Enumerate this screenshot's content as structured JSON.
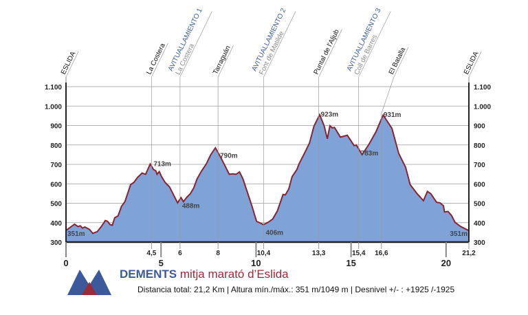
{
  "colors": {
    "fill": "#7fa3d6",
    "line": "#8b2232",
    "accent_blue": "#3c5a9b",
    "accent_red": "#9b2a3a",
    "grid": "#9a9a9a"
  },
  "header": {
    "brand": "DEMENTS",
    "race_name": "mitja marató d’Eslida",
    "stats": "Distancia total: 21,2 Km | Altura mín./máx.: 351 m/1049 m  |  Desnivel +/- : +1925 /-1925"
  },
  "chart_data": {
    "type": "area",
    "xlim": [
      0,
      21.2
    ],
    "ylim": [
      300,
      1100
    ],
    "y_ticks": [
      {
        "v": 300,
        "label": "300"
      },
      {
        "v": 400,
        "label": "400"
      },
      {
        "v": 500,
        "label": "500"
      },
      {
        "v": 600,
        "label": "600"
      },
      {
        "v": 700,
        "label": "700"
      },
      {
        "v": 800,
        "label": "800"
      },
      {
        "v": 900,
        "label": "900"
      },
      {
        "v": 1000,
        "label": "1.000"
      },
      {
        "v": 1100,
        "label": "1.100"
      }
    ],
    "x_major_ticks": [
      {
        "v": 0,
        "label": "0"
      },
      {
        "v": 5,
        "label": "5"
      },
      {
        "v": 10,
        "label": "10"
      },
      {
        "v": 15,
        "label": "15"
      },
      {
        "v": 20,
        "label": "20"
      }
    ],
    "x_minor_ticks": [
      {
        "v": 4.5,
        "label": "4,5"
      },
      {
        "v": 6,
        "label": "6"
      },
      {
        "v": 8,
        "label": "8"
      },
      {
        "v": 10.4,
        "label": "10,4"
      },
      {
        "v": 13.3,
        "label": "13,3"
      },
      {
        "v": 15.4,
        "label": "15,4"
      },
      {
        "v": 16.6,
        "label": "16,6"
      },
      {
        "v": 21.2,
        "label": "21,2"
      }
    ],
    "grid": true,
    "waypoints": [
      {
        "km": 0,
        "label": "ESLIDA",
        "sub": ""
      },
      {
        "km": 4.5,
        "label": "La Costera",
        "sub": ""
      },
      {
        "km": 6,
        "label": "AVITUALLAMIENTO 1",
        "sub": "La Costera",
        "aid": true
      },
      {
        "km": 8,
        "label": "Tarraguán",
        "sub": ""
      },
      {
        "km": 10.4,
        "label": "AVITUALLAMIENTO 2",
        "sub": "Font de Matilde",
        "aid": true
      },
      {
        "km": 13.3,
        "label": "Puntal de l'Aljub",
        "sub": ""
      },
      {
        "km": 15.4,
        "label": "AVITUALLAMIENTO 3",
        "sub": "Coll de Barres",
        "aid": true
      },
      {
        "km": 16.6,
        "label": "El Batalla",
        "sub": ""
      },
      {
        "km": 21.2,
        "label": "ESLIDA",
        "sub": ""
      }
    ],
    "annotations": [
      {
        "km": 0,
        "label": "351m"
      },
      {
        "km": 4.5,
        "label": "713m"
      },
      {
        "km": 6,
        "label": "488m"
      },
      {
        "km": 8,
        "label": "790m"
      },
      {
        "km": 10.4,
        "label": "406m"
      },
      {
        "km": 13.3,
        "label": "923m"
      },
      {
        "km": 15.4,
        "label": "783m"
      },
      {
        "km": 16.6,
        "label": "931m"
      },
      {
        "km": 21.2,
        "label": "351m"
      }
    ],
    "profile": [
      [
        0,
        360
      ],
      [
        0.45,
        392
      ],
      [
        0.63,
        380
      ],
      [
        0.75,
        384
      ],
      [
        0.87,
        372
      ],
      [
        0.99,
        378
      ],
      [
        1.23,
        366
      ],
      [
        1.41,
        345
      ],
      [
        1.65,
        354
      ],
      [
        1.89,
        384
      ],
      [
        2.07,
        411
      ],
      [
        2.19,
        407
      ],
      [
        2.32,
        390
      ],
      [
        2.44,
        387
      ],
      [
        2.56,
        425
      ],
      [
        2.74,
        435
      ],
      [
        2.92,
        484
      ],
      [
        3.1,
        508
      ],
      [
        3.4,
        596
      ],
      [
        3.58,
        608
      ],
      [
        3.76,
        632
      ],
      [
        4.0,
        655
      ],
      [
        4.19,
        649
      ],
      [
        4.43,
        702
      ],
      [
        4.61,
        673
      ],
      [
        4.73,
        667
      ],
      [
        4.79,
        649
      ],
      [
        4.91,
        663
      ],
      [
        5.03,
        637
      ],
      [
        5.21,
        608
      ],
      [
        5.45,
        584
      ],
      [
        5.63,
        549
      ],
      [
        5.87,
        502
      ],
      [
        6.05,
        529
      ],
      [
        6.18,
        508
      ],
      [
        6.36,
        531
      ],
      [
        6.54,
        549
      ],
      [
        6.72,
        579
      ],
      [
        6.9,
        626
      ],
      [
        7.14,
        667
      ],
      [
        7.38,
        702
      ],
      [
        7.62,
        750
      ],
      [
        7.86,
        785
      ],
      [
        8.1,
        744
      ],
      [
        8.35,
        696
      ],
      [
        8.59,
        649
      ],
      [
        8.77,
        651
      ],
      [
        8.95,
        649
      ],
      [
        9.13,
        661
      ],
      [
        9.31,
        626
      ],
      [
        9.55,
        555
      ],
      [
        9.79,
        484
      ],
      [
        10.03,
        407
      ],
      [
        10.27,
        396
      ],
      [
        10.39,
        390
      ],
      [
        10.64,
        402
      ],
      [
        10.88,
        419
      ],
      [
        11.12,
        460
      ],
      [
        11.42,
        545
      ],
      [
        11.54,
        543
      ],
      [
        11.72,
        573
      ],
      [
        11.9,
        637
      ],
      [
        12.15,
        673
      ],
      [
        12.26,
        702
      ],
      [
        12.51,
        750
      ],
      [
        12.81,
        809
      ],
      [
        13.05,
        897
      ],
      [
        13.35,
        956
      ],
      [
        13.59,
        897
      ],
      [
        13.75,
        832
      ],
      [
        13.89,
        899
      ],
      [
        14.01,
        888
      ],
      [
        14.13,
        890
      ],
      [
        14.44,
        840
      ],
      [
        14.8,
        850
      ],
      [
        15.16,
        797
      ],
      [
        15.28,
        799
      ],
      [
        15.58,
        750
      ],
      [
        15.94,
        803
      ],
      [
        16.31,
        867
      ],
      [
        16.69,
        954
      ],
      [
        17.15,
        885
      ],
      [
        17.51,
        756
      ],
      [
        17.87,
        685
      ],
      [
        18.11,
        596
      ],
      [
        18.48,
        549
      ],
      [
        18.81,
        513
      ],
      [
        19.02,
        561
      ],
      [
        19.2,
        549
      ],
      [
        19.5,
        505
      ],
      [
        19.68,
        502
      ],
      [
        19.86,
        487
      ],
      [
        19.92,
        455
      ],
      [
        20.1,
        458
      ],
      [
        20.29,
        437
      ],
      [
        20.47,
        402
      ],
      [
        20.77,
        380
      ],
      [
        21.19,
        360
      ]
    ]
  }
}
